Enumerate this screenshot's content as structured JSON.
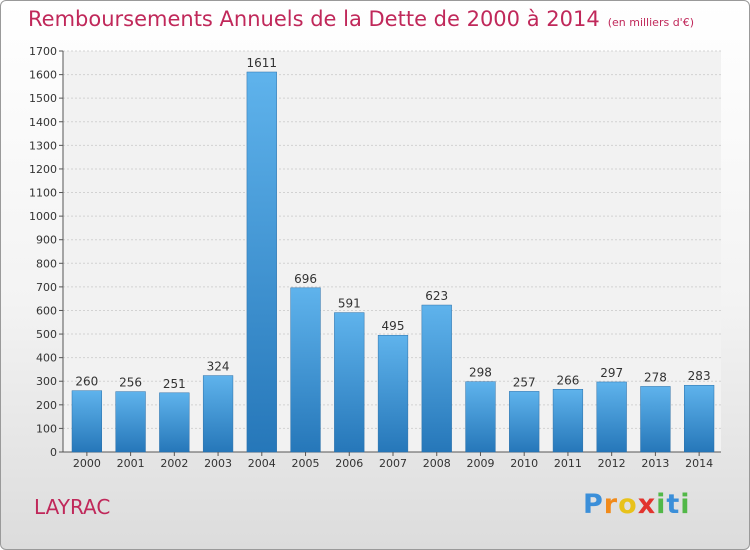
{
  "header": {
    "title": "Remboursements Annuels de la Dette de 2000 à 2014",
    "subtitle": "(en milliers d'€)"
  },
  "footer": {
    "city": "LAYRAC",
    "brand": [
      "P",
      "r",
      "o",
      "x",
      "i",
      "t",
      "i"
    ]
  },
  "colors": {
    "title": "#c0285a",
    "bar_top": "#5fb3ec",
    "bar_bottom": "#2677b9",
    "brand": [
      "#3b8fd9",
      "#f18a1a",
      "#e8c21a",
      "#e2342e",
      "#52b848",
      "#3b8fd9",
      "#52b848"
    ]
  },
  "chart_data": {
    "type": "bar",
    "categories": [
      "2000",
      "2001",
      "2002",
      "2003",
      "2004",
      "2005",
      "2006",
      "2007",
      "2008",
      "2009",
      "2010",
      "2011",
      "2012",
      "2013",
      "2014"
    ],
    "values": [
      260,
      256,
      251,
      324,
      1611,
      696,
      591,
      495,
      623,
      298,
      257,
      266,
      297,
      278,
      283
    ],
    "ylim": [
      0,
      1700
    ],
    "yticks": [
      0,
      100,
      200,
      300,
      400,
      500,
      600,
      700,
      800,
      900,
      1000,
      1100,
      1200,
      1300,
      1400,
      1500,
      1600,
      1700
    ],
    "grid": true
  }
}
